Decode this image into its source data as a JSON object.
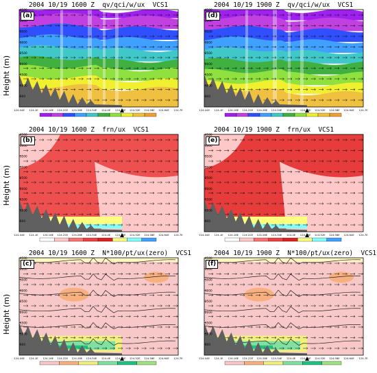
{
  "y_label": "Height (m)",
  "y_ticks": [
    "4500",
    "4000",
    "3500",
    "3000",
    "2500",
    "2000",
    "1500",
    "1000",
    "500"
  ],
  "x_ticks": [
    "124.04E",
    "124.1E",
    "124.16E",
    "124.22E",
    "124.28E",
    "124.34E",
    "124.4E",
    "124.46E",
    "124.52E",
    "124.58E",
    "124.64E",
    "124.7E"
  ],
  "colors": {
    "vapor": [
      "#a020f0",
      "#c040e0",
      "#3050ff",
      "#40a0ff",
      "#40c8c8",
      "#40b040",
      "#90e040",
      "#f0f030",
      "#f0c040",
      "#f0a030"
    ],
    "frn": [
      "#ffffff",
      "#ffc8c8",
      "#ff7070",
      "#ee4040",
      "#dd2020",
      "#ffff80",
      "#80ffff",
      "#40a0ff"
    ],
    "stability": [
      "#f8c8c8",
      "#f8b080",
      "#f0f080",
      "#80e0a0",
      "#20c080",
      "#a0e080"
    ],
    "terrain": "#606060"
  },
  "panels": [
    {
      "label": "(a)",
      "title": "2004 10/19 1600 Z  qv/qci/w/ux  VCS1",
      "field": "qv/qci/w/ux",
      "time": "1600 Z",
      "contour_labels": [
        "600",
        "800",
        "1000",
        "1200",
        "1400"
      ]
    },
    {
      "label": "(d)",
      "title": "2004 10/19 1900 Z  qv/qci/w/ux  VCS1",
      "field": "qv/qci/w/ux",
      "time": "1900 Z",
      "contour_labels": [
        "600",
        "800",
        "1000",
        "1200",
        "1400"
      ]
    },
    {
      "label": "(b)",
      "title": "2004 10/19 1600 Z  frn/ux  VCS1",
      "field": "frn/ux",
      "time": "1600 Z",
      "contour_labels": []
    },
    {
      "label": "(e)",
      "title": "2004 10/19 1900 Z  frn/ux  VCS1",
      "field": "frn/ux",
      "time": "1900 Z",
      "contour_labels": []
    },
    {
      "label": "(c)",
      "title": "2004 10/19 1600 Z  N*100/pt/ux(zero)  VCS1",
      "field": "N*100/pt/ux(zero)",
      "time": "1600 Z",
      "contour_labels": [
        "316",
        "312",
        "308",
        "304",
        "300",
        "296"
      ]
    },
    {
      "label": "(f)",
      "title": "2004 10/19 1900 Z  N*100/pt/ux(zero)  VCS1",
      "field": "N*100/pt/ux(zero)",
      "time": "1900 Z",
      "contour_labels": [
        "316",
        "312",
        "308",
        "304",
        "300",
        "296"
      ]
    }
  ],
  "chart_data": [
    {
      "type": "heatmap",
      "title": "2004 10/19 1600 Z  qv/qci/w/ux  VCS1",
      "ylabel": "Height (m)",
      "ylim": [
        0,
        4500
      ],
      "bands": [
        {
          "height": [
            4200,
            4500
          ],
          "color": "#a020f0"
        },
        {
          "height": [
            3700,
            4200
          ],
          "color": "#c040e0"
        },
        {
          "height": [
            3200,
            3700
          ],
          "color": "#3050ff"
        },
        {
          "height": [
            2700,
            3200
          ],
          "color": "#40a0ff"
        },
        {
          "height": [
            2200,
            2700
          ],
          "color": "#40c8c8"
        },
        {
          "height": [
            1800,
            2200
          ],
          "color": "#40b040"
        },
        {
          "height": [
            1300,
            1800
          ],
          "color": "#90e040"
        },
        {
          "height": [
            900,
            1300
          ],
          "color": "#f0f030"
        },
        {
          "height": [
            0,
            900
          ],
          "color": "#f0c040"
        }
      ]
    },
    {
      "type": "heatmap",
      "title": "2004 10/19 1900 Z  qv/qci/w/ux  VCS1",
      "ylabel": "Height (m)",
      "ylim": [
        0,
        4500
      ],
      "bands": [
        {
          "height": [
            4100,
            4500
          ],
          "color": "#a020f0"
        },
        {
          "height": [
            3600,
            4100
          ],
          "color": "#c040e0"
        },
        {
          "height": [
            3100,
            3600
          ],
          "color": "#3050ff"
        },
        {
          "height": [
            2600,
            3100
          ],
          "color": "#40a0ff"
        },
        {
          "height": [
            2100,
            2600
          ],
          "color": "#40c8c8"
        },
        {
          "height": [
            1600,
            2100
          ],
          "color": "#40b040"
        },
        {
          "height": [
            1100,
            1600
          ],
          "color": "#90e040"
        },
        {
          "height": [
            700,
            1100
          ],
          "color": "#f0f030"
        },
        {
          "height": [
            0,
            700
          ],
          "color": "#f0c040"
        }
      ]
    },
    {
      "type": "heatmap",
      "title": "2004 10/19 1600 Z  frn/ux  VCS1",
      "ylabel": "Height (m)",
      "ylim": [
        0,
        4500
      ]
    },
    {
      "type": "heatmap",
      "title": "2004 10/19 1900 Z  frn/ux  VCS1",
      "ylabel": "Height (m)",
      "ylim": [
        0,
        4500
      ]
    },
    {
      "type": "heatmap",
      "title": "2004 10/19 1600 Z  N*100/pt/ux(zero)  VCS1",
      "ylabel": "Height (m)",
      "ylim": [
        0,
        4500
      ],
      "contours": [
        296,
        300,
        304,
        308,
        312,
        316
      ]
    },
    {
      "type": "heatmap",
      "title": "2004 10/19 1900 Z  N*100/pt/ux(zero)  VCS1",
      "ylabel": "Height (m)",
      "ylim": [
        0,
        4500
      ],
      "contours": [
        296,
        300,
        304,
        308,
        312,
        316
      ]
    }
  ]
}
